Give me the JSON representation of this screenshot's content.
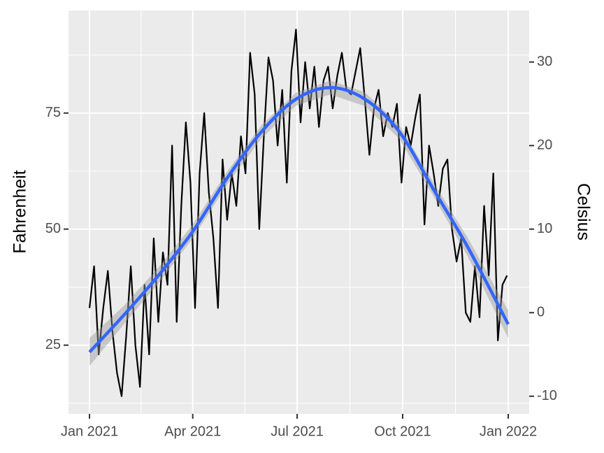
{
  "chart_data": {
    "type": "line",
    "ylabel": "Fahrenheit",
    "y2label": "Celsius",
    "x": [
      0,
      4,
      8,
      12,
      16,
      20,
      24,
      28,
      32,
      36,
      40,
      44,
      48,
      52,
      56,
      60,
      64,
      68,
      72,
      76,
      80,
      84,
      88,
      92,
      96,
      100,
      104,
      108,
      112,
      116,
      120,
      124,
      128,
      132,
      136,
      140,
      144,
      148,
      152,
      156,
      160,
      164,
      168,
      172,
      176,
      180,
      184,
      188,
      192,
      196,
      200,
      204,
      208,
      212,
      216,
      220,
      224,
      228,
      232,
      236,
      240,
      244,
      248,
      252,
      256,
      260,
      264,
      268,
      272,
      276,
      280,
      284,
      288,
      292,
      296,
      300,
      304,
      308,
      312,
      316,
      320,
      324,
      328,
      332,
      336,
      340,
      344,
      348,
      352,
      356,
      360,
      364
    ],
    "series": [
      {
        "color": "#000000",
        "values": [
          33,
          42,
          23,
          33,
          41,
          28,
          19,
          14,
          27,
          42,
          25,
          16,
          38,
          23,
          48,
          30,
          45,
          38,
          68,
          30,
          55,
          73,
          60,
          33,
          62,
          75,
          58,
          48,
          33,
          65,
          52,
          62,
          55,
          70,
          62,
          88,
          79,
          50,
          70,
          87,
          82,
          68,
          80,
          60,
          84,
          93,
          73,
          86,
          76,
          85,
          72,
          82,
          85,
          76,
          83,
          88,
          80,
          79,
          84,
          89,
          78,
          66,
          76,
          80,
          70,
          75,
          72,
          77,
          60,
          72,
          68,
          74,
          79,
          51,
          68,
          62,
          55,
          63,
          65,
          50,
          43,
          48,
          32,
          30,
          42,
          31,
          55,
          40,
          62,
          26,
          38,
          40
        ]
      }
    ],
    "smooth": {
      "color": "#3366ff",
      "band_color": "#999999",
      "x": [
        0,
        30,
        60,
        90,
        120,
        150,
        180,
        210,
        240,
        270,
        300,
        330,
        365
      ],
      "values": [
        23.5,
        31.5,
        40,
        49.5,
        61,
        71,
        78,
        80.5,
        78,
        71,
        58.5,
        46,
        29.5
      ],
      "lower": [
        20.5,
        29.5,
        38.3,
        48,
        59.6,
        69.6,
        76.6,
        79,
        76.5,
        69.5,
        57,
        44,
        26.5
      ],
      "upper": [
        26.5,
        33.5,
        41.7,
        51,
        62.4,
        72.4,
        79.4,
        82,
        79.5,
        72.5,
        60,
        48,
        32.5
      ]
    },
    "xlim": [
      -18.3,
      383.3
    ],
    "xticks": [
      {
        "value": 0,
        "label": "Jan 2021"
      },
      {
        "value": 90,
        "label": "Apr 2021"
      },
      {
        "value": 181,
        "label": "Jul 2021"
      },
      {
        "value": 273,
        "label": "Oct 2021"
      },
      {
        "value": 365,
        "label": "Jan 2022"
      }
    ],
    "ylim": [
      10.2,
      97.1
    ],
    "yticks": [
      25,
      50,
      75
    ],
    "y2lim": [
      -12.11,
      36.17
    ],
    "y2ticks": [
      -10,
      0,
      10,
      20,
      30
    ],
    "grid": true
  }
}
